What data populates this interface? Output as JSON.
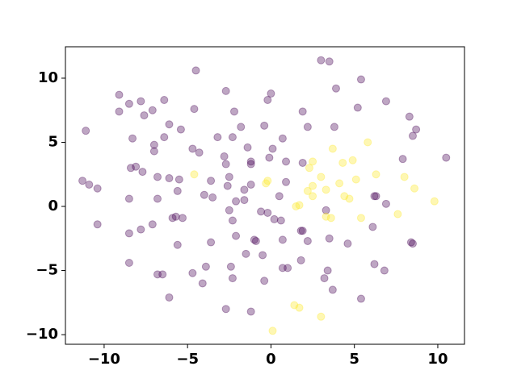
{
  "chart_data": {
    "type": "scatter",
    "xlim": [
      -12.32,
      11.6
    ],
    "ylim": [
      -10.75,
      12.45
    ],
    "xticks": [
      {
        "value": -10,
        "label": "−10"
      },
      {
        "value": -5,
        "label": "−5"
      },
      0,
      5,
      10
    ],
    "yticks": [
      {
        "value": -10,
        "label": "−10"
      },
      {
        "value": -5,
        "label": "−5"
      },
      0,
      5,
      10
    ],
    "grid": false,
    "series": [
      {
        "color": "#440154",
        "x": [
          3.0,
          3.5,
          -4.5,
          5.4,
          3.9,
          -2.7,
          0,
          -9.1,
          -0.2,
          -6.4,
          6.9,
          -7.8,
          -8.5,
          5.2,
          -4.6,
          -7.1,
          -9.1,
          -2.2,
          1.9,
          -7.6,
          8.3,
          -6.1,
          2.2,
          -1.8,
          -0.4,
          3.8,
          8.7,
          -11.1,
          -5.4,
          -6.4,
          -3.2,
          -2.3,
          0.7,
          -8.3,
          8.5,
          -7.0,
          -1.4,
          0.1,
          -4.7,
          -4.3,
          -7.0,
          -2.8,
          7.9,
          10.5,
          -0.1,
          -1.2,
          0.9,
          1.9,
          -2.7,
          -1.2,
          -8.4,
          -8.1,
          -7.7,
          -2.5,
          -6.8,
          -6.1,
          -5.5,
          -3.6,
          0.9,
          -2.6,
          -1.2,
          -11.3,
          -10.9,
          -10.4,
          -5.6,
          -1.6,
          -4.0,
          -3.5,
          0.5,
          -8.5,
          6.3,
          6.2,
          -6.8,
          -2.1,
          -1.6,
          6.9,
          -2.5,
          -0.6,
          -0.2,
          3.3,
          -7.1,
          -10.4,
          -7.8,
          -8.5,
          0.2,
          0.6,
          -5.9,
          -5.7,
          -5.3,
          -2.3,
          1.8,
          1.9,
          6.1,
          -2.1,
          -1.0,
          -0.9,
          0.7,
          2.2,
          3.5,
          4.6,
          -5.6,
          -3.6,
          8.4,
          8.5,
          -1.5,
          -0.5,
          -8.5,
          1.8,
          -3.9,
          -2.4,
          6.2,
          3.4,
          0.7,
          1.0,
          -4.7,
          6.8,
          -6.8,
          -6.5,
          -2.3,
          3.2,
          -0.4,
          -4.1,
          3.7,
          5.4,
          -6.1,
          -2.7,
          -1.2
        ],
        "y": [
          11.4,
          11.3,
          10.6,
          9.9,
          9.2,
          9.0,
          8.8,
          8.7,
          8.3,
          8.3,
          8.2,
          8.2,
          8.0,
          7.7,
          7.6,
          7.5,
          7.4,
          7.4,
          7.4,
          7.1,
          7.0,
          6.4,
          6.2,
          6.2,
          6.3,
          6.2,
          6.0,
          5.9,
          6.0,
          5.4,
          5.4,
          5.4,
          5.3,
          5.3,
          5.5,
          4.8,
          4.6,
          4.5,
          4.5,
          4.2,
          4.3,
          3.9,
          3.7,
          3.8,
          3.8,
          3.5,
          3.5,
          3.4,
          3.3,
          3.3,
          3.0,
          3.1,
          2.7,
          2.3,
          2.3,
          2.2,
          2.1,
          2.0,
          1.9,
          1.6,
          1.7,
          2.0,
          1.7,
          1.4,
          1.2,
          1.3,
          0.9,
          0.7,
          0.8,
          0.6,
          0.8,
          0.8,
          0.6,
          0.4,
          0.5,
          0.2,
          -0.3,
          -0.4,
          -0.5,
          -0.3,
          -1.4,
          -1.4,
          -1.8,
          -2.1,
          -1.0,
          -1.1,
          -0.9,
          -0.8,
          -0.9,
          -1.1,
          -1.9,
          -1.9,
          -1.6,
          -2.3,
          -2.6,
          -2.7,
          -2.6,
          -2.7,
          -2.5,
          -2.9,
          -3.0,
          -2.8,
          -2.8,
          -2.9,
          -3.7,
          -3.8,
          -4.4,
          -4.2,
          -4.7,
          -4.7,
          -4.5,
          -5.0,
          -4.8,
          -4.8,
          -5.2,
          -5.0,
          -5.3,
          -5.3,
          -5.6,
          -5.6,
          -5.8,
          -6.0,
          -6.5,
          -7.2,
          -7.1,
          -8.0,
          -8.2
        ]
      },
      {
        "color": "#fde725",
        "x": [
          0.1,
          1.4,
          1.7,
          3.0,
          5.4,
          3.3,
          3.6,
          7.6,
          9.8,
          1.7,
          1.5,
          4.7,
          4.4,
          2.5,
          2.2,
          3.3,
          8.6,
          2.5,
          4.1,
          -0.3,
          -0.2,
          5.1,
          8.0,
          3.0,
          6.3,
          -4.6,
          2.3,
          2.5,
          4.3,
          4.9,
          3.7,
          5.8
        ],
        "y": [
          -9.7,
          -7.7,
          -7.9,
          -8.6,
          -0.9,
          -0.8,
          -0.9,
          -0.6,
          0.4,
          0.1,
          0.0,
          0.6,
          0.8,
          0.8,
          1.2,
          1.3,
          1.4,
          1.6,
          1.8,
          1.8,
          2.0,
          2.1,
          2.3,
          2.3,
          2.5,
          2.5,
          3.0,
          3.5,
          3.4,
          3.6,
          4.5,
          5.0
        ]
      }
    ]
  }
}
